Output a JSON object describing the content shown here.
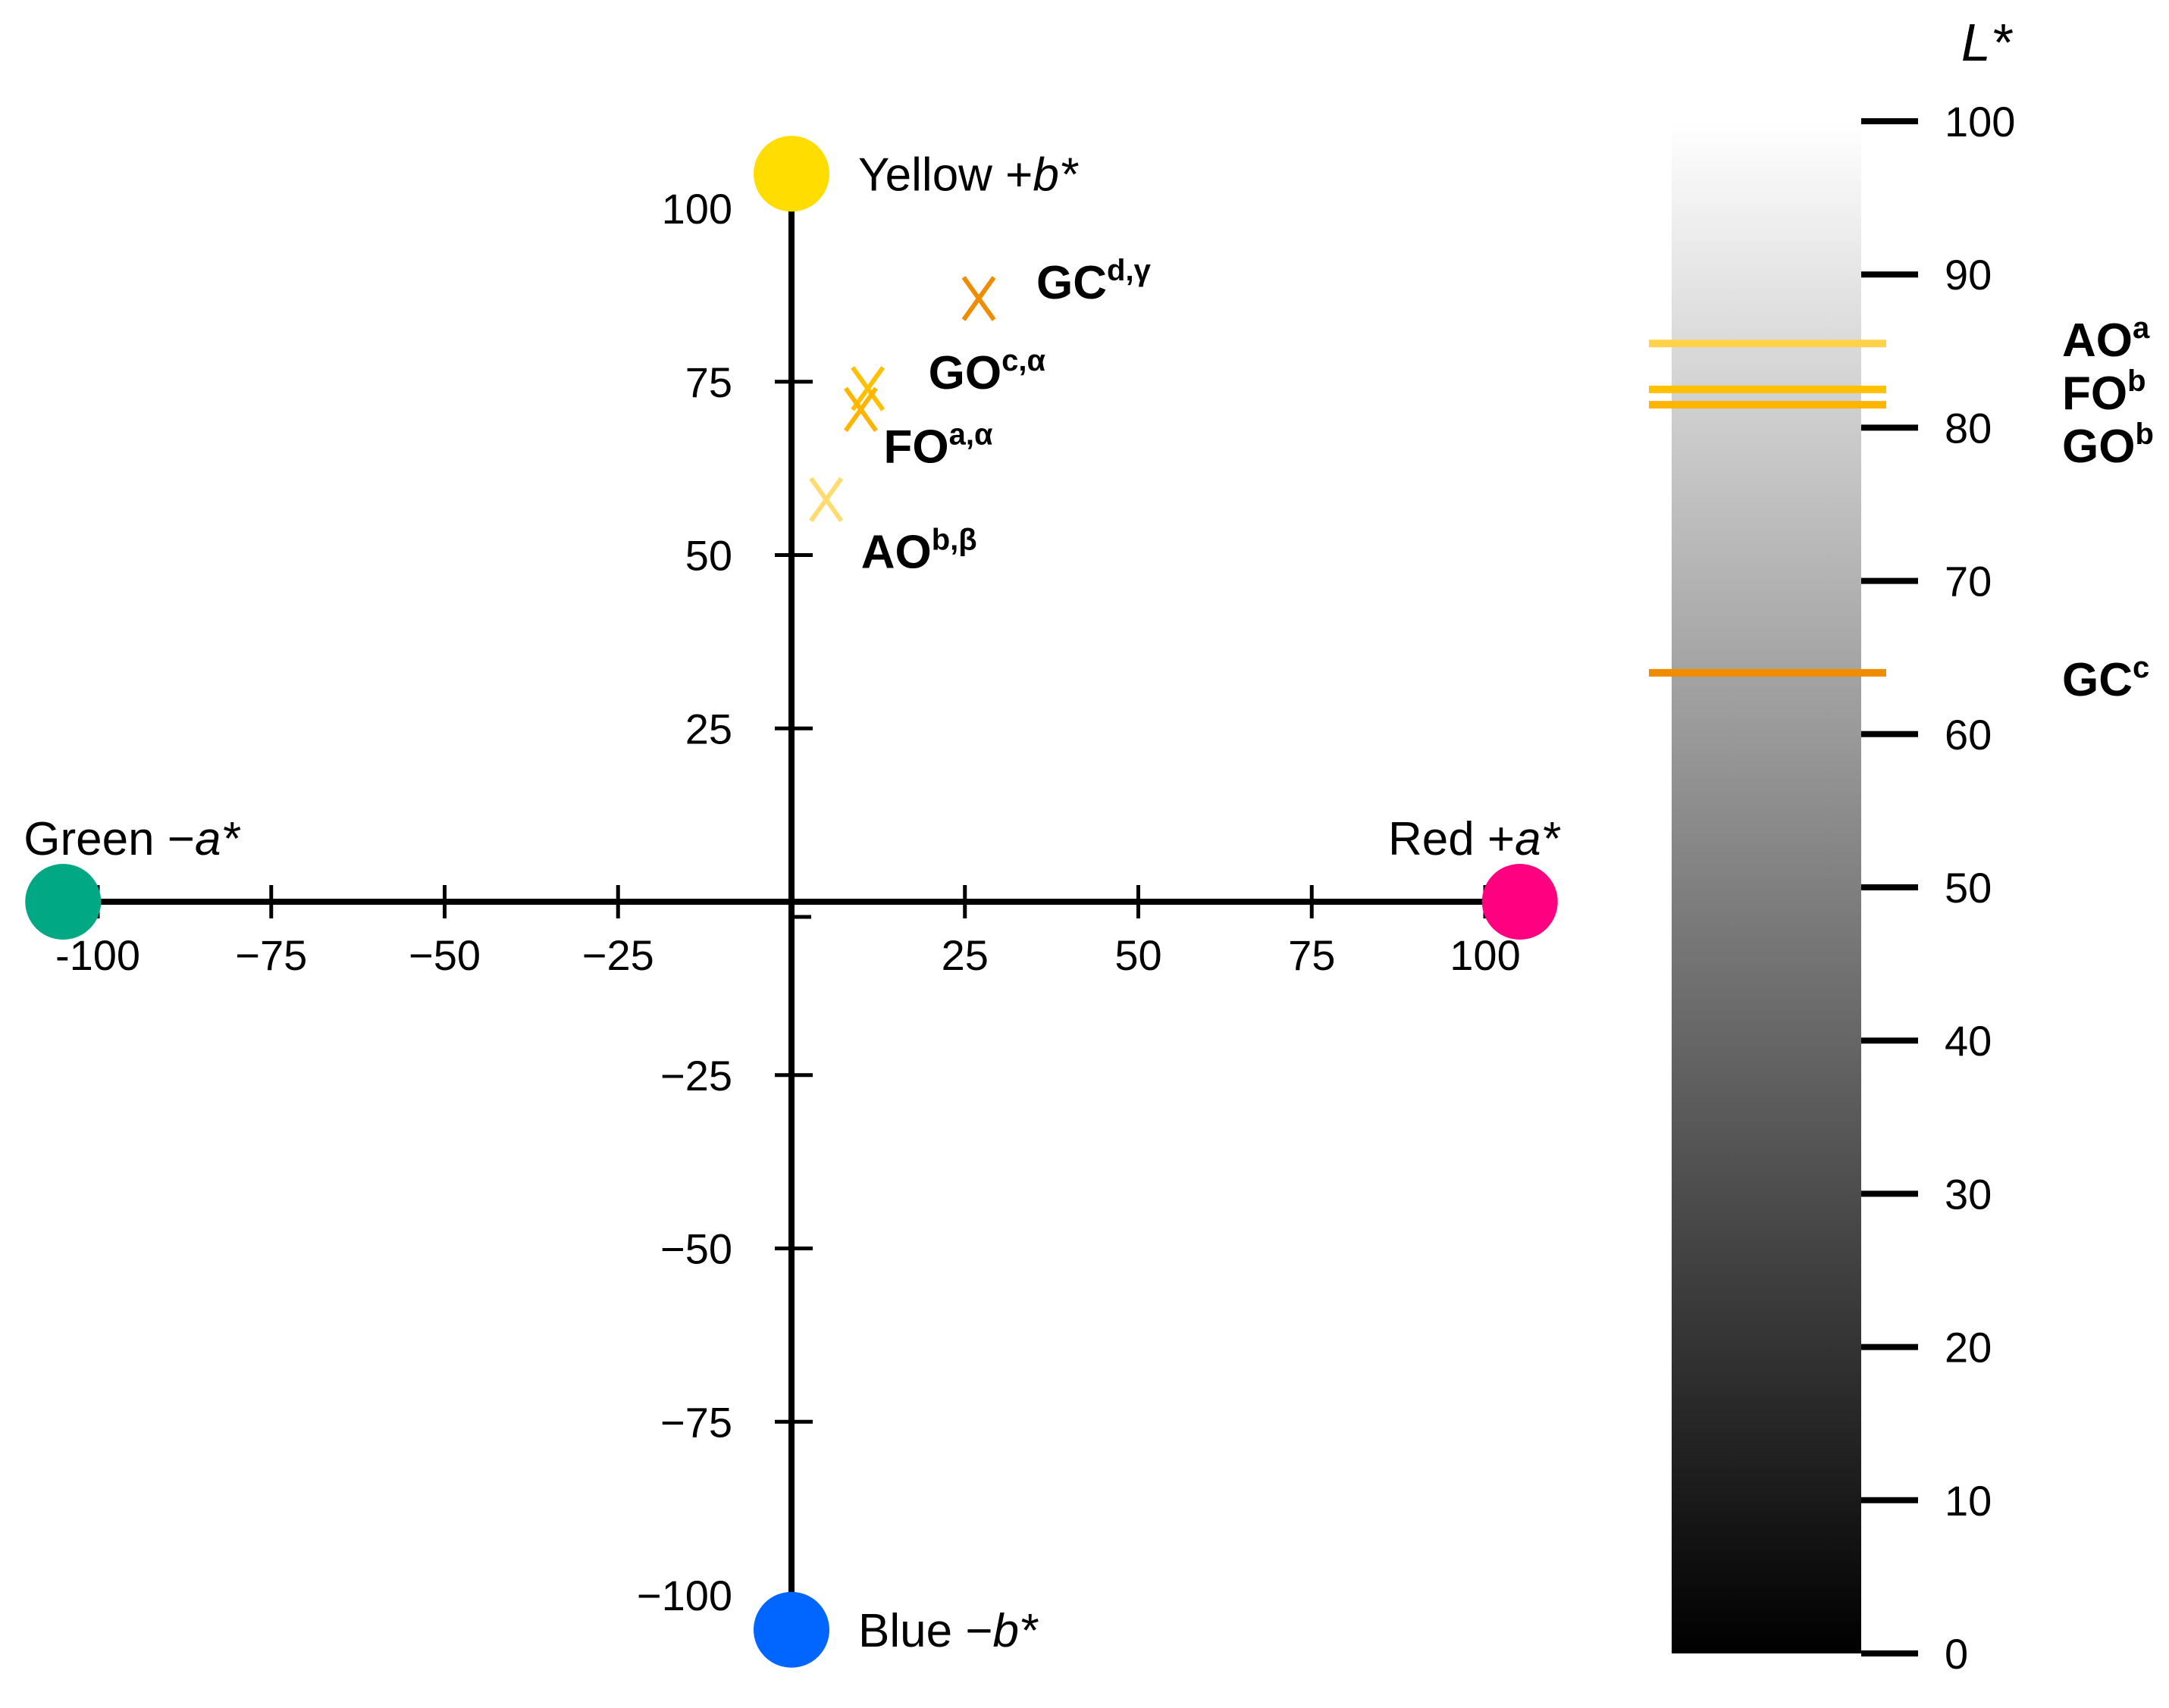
{
  "chart_data": [
    {
      "type": "scatter",
      "title": "",
      "xlabel": "",
      "ylabel": "",
      "xlim": [
        -105,
        105
      ],
      "ylim": [
        -105,
        105
      ],
      "x_ticks": [
        -100,
        -75,
        -50,
        -25,
        25,
        50,
        75,
        100
      ],
      "x_tick_labels": [
        "-100",
        "−75",
        "−50",
        "−25",
        "25",
        "50",
        "75",
        "100"
      ],
      "y_ticks": [
        100,
        75,
        50,
        25,
        -25,
        -50,
        -75,
        -100
      ],
      "y_tick_labels": [
        "100",
        "75",
        "50",
        "25",
        "−25",
        "−50",
        "−75",
        "−100"
      ],
      "poles": [
        {
          "name": "yellow",
          "text": "Yellow +",
          "var": "b*",
          "a": 0,
          "b": 105,
          "color": "#FFDD00"
        },
        {
          "name": "blue",
          "text": "Blue −",
          "var": "b*",
          "a": 0,
          "b": -105,
          "color": "#0066FF"
        },
        {
          "name": "green",
          "text": "Green −",
          "var": "a*",
          "a": -105,
          "b": 0,
          "color": "#00A884"
        },
        {
          "name": "red",
          "text": "Red +",
          "var": "a*",
          "a": 105,
          "b": 0,
          "color": "#FF0080"
        }
      ],
      "points": [
        {
          "name": "GC",
          "sup": "d,γ",
          "a": 27,
          "b": 87,
          "color": "#F08C00"
        },
        {
          "name": "GO",
          "sup": "c,α",
          "a": 11,
          "b": 74,
          "color": "#FFC000"
        },
        {
          "name": "FO",
          "sup": "a,α",
          "a": 10,
          "b": 71,
          "color": "#FFB400"
        },
        {
          "name": "AO",
          "sup": "b,β",
          "a": 5,
          "b": 58,
          "color": "#FFDB70"
        }
      ]
    },
    {
      "type": "bar",
      "title": "L*",
      "ylim": [
        0,
        100
      ],
      "y_ticks": [
        100,
        90,
        80,
        70,
        60,
        50,
        40,
        30,
        20,
        10,
        0
      ],
      "y_tick_labels": [
        "100",
        "90",
        "80",
        "70",
        "60",
        "50",
        "40",
        "30",
        "20",
        "10",
        "0"
      ],
      "markers": [
        {
          "name": "AO",
          "sup": "a",
          "L": 85.5,
          "color": "#FFD24A"
        },
        {
          "name": "FO",
          "sup": "b",
          "L": 82.5,
          "color": "#FFC000"
        },
        {
          "name": "GO",
          "sup": "b",
          "L": 81.5,
          "color": "#FFB400"
        },
        {
          "name": "GC",
          "sup": "c",
          "L": 64.0,
          "color": "#F08C00"
        }
      ]
    }
  ]
}
